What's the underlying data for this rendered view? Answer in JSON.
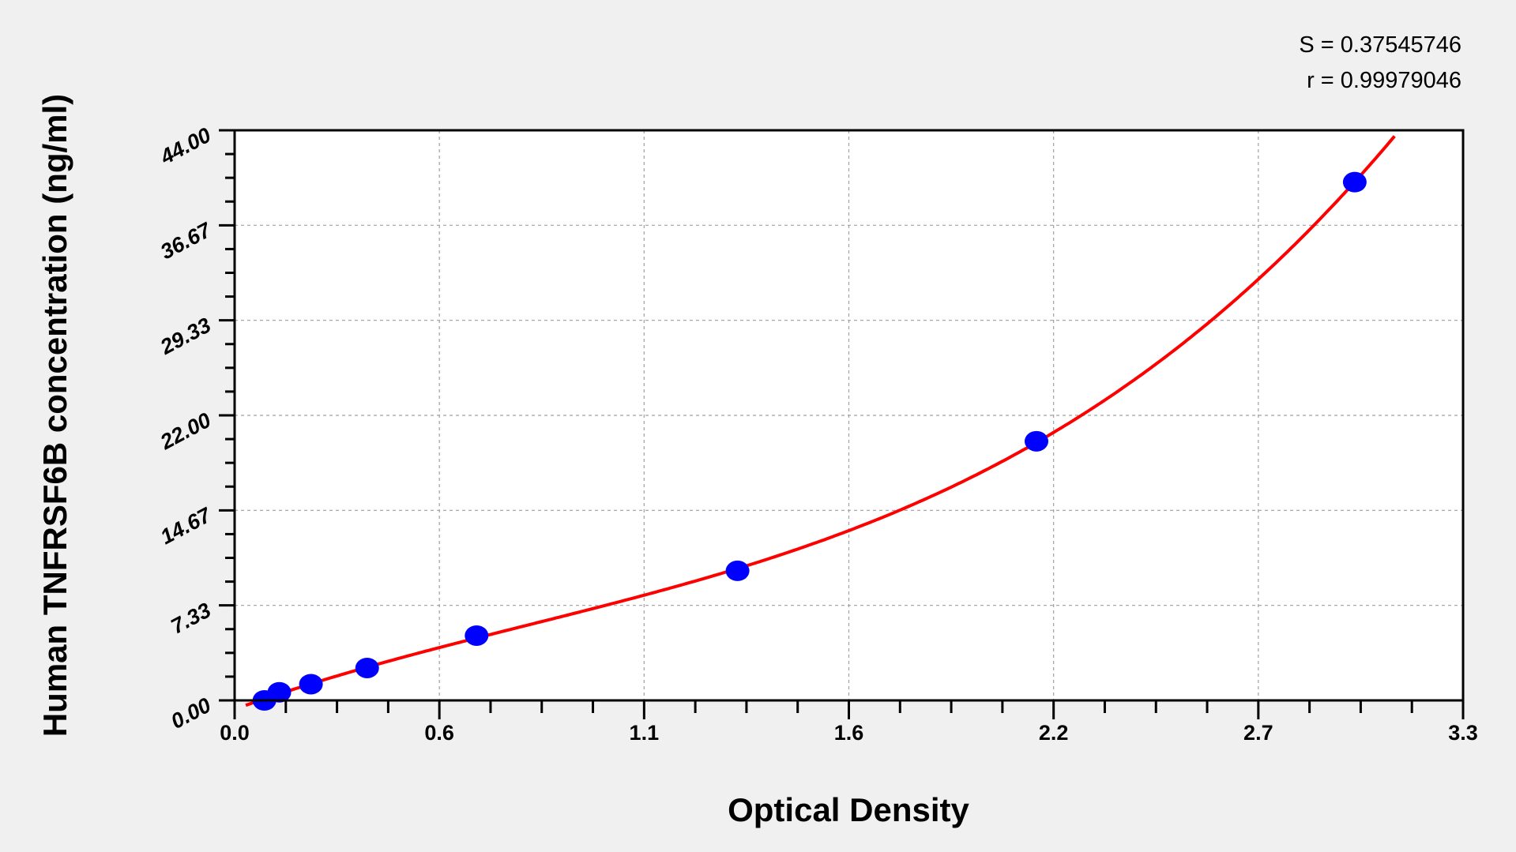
{
  "chart_data": {
    "type": "scatter",
    "title": "",
    "xlabel": "Optical Density",
    "ylabel": "Human TNFRSF6B concentration (ng/ml)",
    "xlim": [
      0,
      3.3
    ],
    "ylim": [
      0,
      44
    ],
    "x_tick_labels": [
      "0.0",
      "0.6",
      "1.1",
      "1.6",
      "2.2",
      "2.7",
      "3.3"
    ],
    "y_tick_labels": [
      "0.00",
      "7.33",
      "14.67",
      "22.00",
      "29.33",
      "36.67",
      "44.00"
    ],
    "grid": true,
    "annotations": [
      "S = 0.37545746",
      "r = 0.99979046"
    ],
    "series": [
      {
        "type": "scatter",
        "color": "#0000ff",
        "x": [
          0.08,
          0.12,
          0.205,
          0.356,
          0.65,
          1.351,
          2.154,
          3.009
        ],
        "y": [
          0,
          0.625,
          1.25,
          2.5,
          5,
          10,
          20,
          40
        ]
      },
      {
        "type": "fit-line",
        "color": "#ff0000",
        "x_range": [
          0.03,
          3.116
        ]
      }
    ],
    "background_color": "#f0f0f0",
    "plot_background": "#ffffff"
  }
}
